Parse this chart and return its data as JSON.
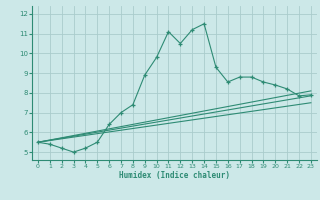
{
  "xlabel": "Humidex (Indice chaleur)",
  "line_color": "#2e8b74",
  "bg_color": "#cce8e8",
  "grid_color": "#aacccc",
  "xlim": [
    -0.5,
    23.5
  ],
  "ylim": [
    4.6,
    12.4
  ],
  "xticks": [
    0,
    1,
    2,
    3,
    4,
    5,
    6,
    7,
    8,
    9,
    10,
    11,
    12,
    13,
    14,
    15,
    16,
    17,
    18,
    19,
    20,
    21,
    22,
    23
  ],
  "yticks": [
    5,
    6,
    7,
    8,
    9,
    10,
    11,
    12
  ],
  "main_line": {
    "x": [
      0,
      1,
      2,
      3,
      4,
      5,
      6,
      7,
      8,
      9,
      10,
      11,
      12,
      13,
      14,
      15,
      16,
      17,
      18,
      19,
      20,
      21,
      22,
      23
    ],
    "y": [
      5.5,
      5.4,
      5.2,
      5.0,
      5.2,
      5.5,
      6.4,
      7.0,
      7.4,
      8.9,
      9.8,
      11.1,
      10.5,
      11.2,
      11.5,
      9.3,
      8.55,
      8.8,
      8.8,
      8.55,
      8.4,
      8.2,
      7.85,
      7.9
    ]
  },
  "ref_lines": [
    {
      "x": [
        0,
        23
      ],
      "y": [
        5.5,
        7.85
      ]
    },
    {
      "x": [
        0,
        23
      ],
      "y": [
        5.5,
        7.5
      ]
    },
    {
      "x": [
        0,
        23
      ],
      "y": [
        5.5,
        8.1
      ]
    }
  ]
}
